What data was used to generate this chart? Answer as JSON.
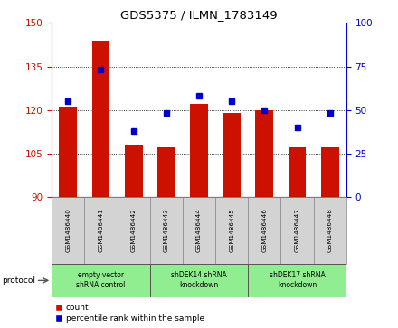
{
  "title": "GDS5375 / ILMN_1783149",
  "samples": [
    "GSM1486440",
    "GSM1486441",
    "GSM1486442",
    "GSM1486443",
    "GSM1486444",
    "GSM1486445",
    "GSM1486446",
    "GSM1486447",
    "GSM1486448"
  ],
  "counts": [
    121,
    144,
    108,
    107,
    122,
    119,
    120,
    107,
    107
  ],
  "percentiles": [
    55,
    73,
    38,
    48,
    58,
    55,
    50,
    40,
    48
  ],
  "ylim_left": [
    90,
    150
  ],
  "ylim_right": [
    0,
    100
  ],
  "yticks_left": [
    90,
    105,
    120,
    135,
    150
  ],
  "yticks_right": [
    0,
    25,
    50,
    75,
    100
  ],
  "bar_color": "#cc1100",
  "dot_color": "#0000cc",
  "bg_color": "#ffffff",
  "tick_area_color": "#d3d3d3",
  "protocol_groups": [
    {
      "label": "empty vector\nshRNA control",
      "start": 0,
      "end": 3
    },
    {
      "label": "shDEK14 shRNA\nknockdown",
      "start": 3,
      "end": 6
    },
    {
      "label": "shDEK17 shRNA\nknockdown",
      "start": 6,
      "end": 9
    }
  ],
  "group_color": "#90ee90",
  "legend_count_label": "count",
  "legend_pct_label": "percentile rank within the sample",
  "protocol_label": "protocol"
}
